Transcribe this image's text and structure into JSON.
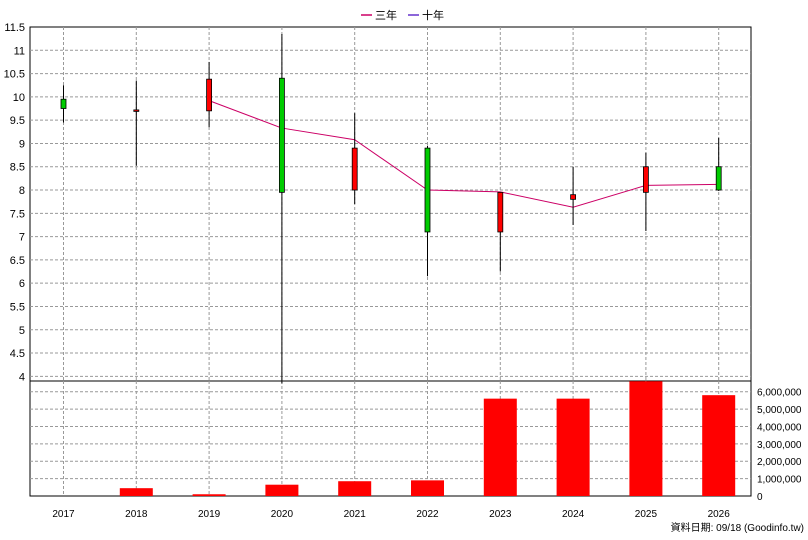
{
  "chart_data": {
    "type": "candlestick+bar",
    "legend": [
      {
        "label": "三年",
        "color": "#cc0066"
      },
      {
        "label": "十年",
        "color": "#6633cc"
      }
    ],
    "categories": [
      "2017",
      "2018",
      "2019",
      "2020",
      "2021",
      "2022",
      "2023",
      "2024",
      "2025",
      "2026"
    ],
    "price_axis": {
      "ylim": [
        3.9,
        11.5
      ],
      "ticks": [
        4,
        4.5,
        5,
        5.5,
        6,
        6.5,
        7,
        7.5,
        8,
        8.5,
        9,
        9.5,
        10,
        10.5,
        11,
        11.5
      ],
      "tick_labels": [
        "4",
        "4.5",
        "5",
        "5.5",
        "6",
        "6.5",
        "7",
        "7.5",
        "8",
        "8.5",
        "9",
        "9.5",
        "10",
        "10.5",
        "11",
        "11.5"
      ]
    },
    "candles": [
      {
        "x": "2017",
        "open": 9.75,
        "close": 9.95,
        "high": 10.25,
        "low": 9.45
      },
      {
        "x": "2018",
        "open": 9.72,
        "close": 9.7,
        "high": 10.35,
        "low": 8.52
      },
      {
        "x": "2019",
        "open": 10.38,
        "close": 9.7,
        "high": 10.75,
        "low": 9.35
      },
      {
        "x": "2020",
        "open": 7.95,
        "close": 10.4,
        "high": 11.35,
        "low": 3.85
      },
      {
        "x": "2021",
        "open": 8.9,
        "close": 8.0,
        "high": 9.65,
        "low": 7.7
      },
      {
        "x": "2022",
        "open": 7.1,
        "close": 8.9,
        "high": 8.95,
        "low": 6.15
      },
      {
        "x": "2023",
        "open": 7.95,
        "close": 7.1,
        "high": 7.95,
        "low": 6.25
      },
      {
        "x": "2024",
        "open": 7.9,
        "close": 7.8,
        "high": 8.5,
        "low": 7.25
      },
      {
        "x": "2025",
        "open": 8.5,
        "close": 7.95,
        "high": 8.8,
        "low": 7.12
      },
      {
        "x": "2026",
        "open": 8.0,
        "close": 8.5,
        "high": 9.12,
        "low": 7.98
      }
    ],
    "ma_line": {
      "name": "三年",
      "color": "#cc0066",
      "x": [
        "2019",
        "2020",
        "2021",
        "2022",
        "2023",
        "2024",
        "2025",
        "2026"
      ],
      "values": [
        9.92,
        9.33,
        9.08,
        8.0,
        7.96,
        7.63,
        8.1,
        8.12
      ]
    },
    "volume_axis": {
      "ylim": [
        0,
        6500000
      ],
      "ticks": [
        0,
        1000000,
        2000000,
        3000000,
        4000000,
        5000000,
        6000000
      ],
      "tick_labels": [
        "0",
        "1,000,000",
        "2,000,000",
        "3,000,000",
        "4,000,000",
        "5,000,000",
        "6,000,000"
      ]
    },
    "volume": [
      0,
      450000,
      100000,
      650000,
      850000,
      900000,
      5600000,
      5600000,
      6600000,
      5800000
    ],
    "colors": {
      "up": "#00cc00",
      "down": "#ff0000",
      "volume": "#ff0000",
      "grid": "#999999"
    },
    "grid": true,
    "footer": "資料日期: 09/18  (Goodinfo.tw)"
  }
}
